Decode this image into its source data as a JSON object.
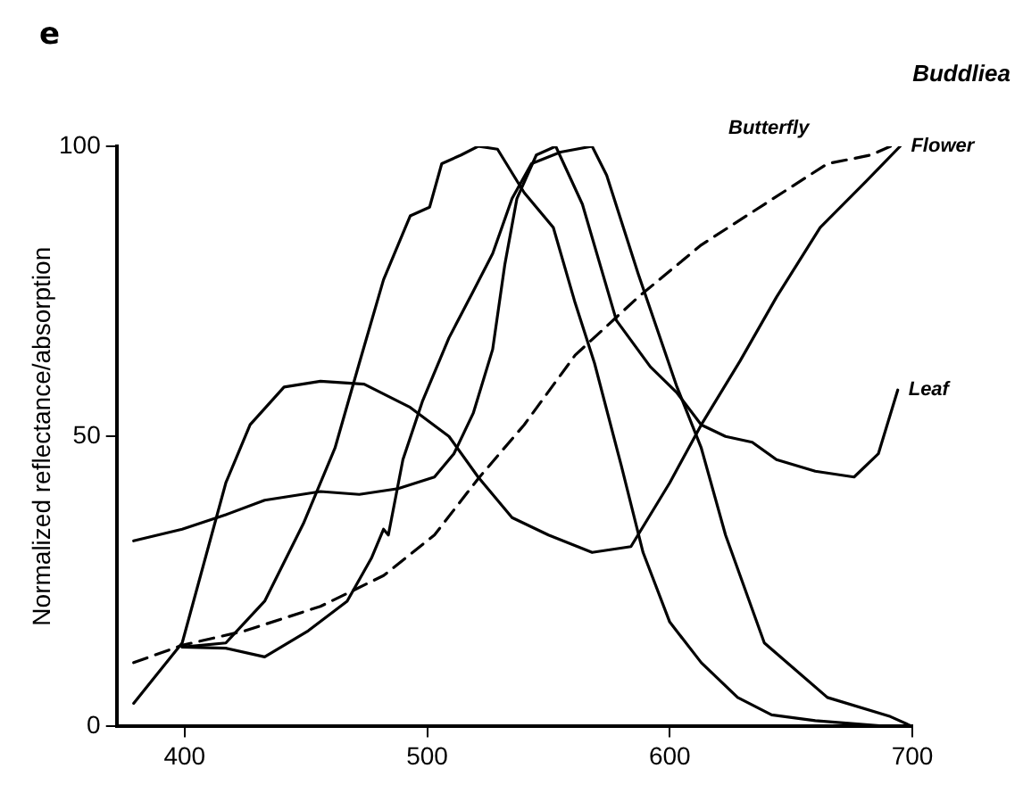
{
  "chart_data": {
    "type": "line",
    "title": "Buddliea",
    "ylabel": "Normalized reflectance/absorption",
    "annotations": [
      "e",
      "Butterfly",
      {
        "text": "Flower",
        "x": 695,
        "y": 100
      },
      {
        "text": "Leaf",
        "x": 694,
        "y": 58
      }
    ],
    "xlim": [
      372,
      700
    ],
    "xticks": [
      400,
      500,
      600,
      700
    ],
    "ylim": [
      0,
      100
    ],
    "yticks": [
      0,
      50,
      100
    ],
    "grid": false,
    "legend": false,
    "marker": "none",
    "series": [
      {
        "color": "#000000",
        "line_style": "solid",
        "x": [
          379,
          399,
          417,
          427,
          441,
          456,
          474,
          493,
          509,
          521,
          535,
          550,
          568,
          584,
          600,
          613,
          629,
          644,
          662,
          681,
          695
        ],
        "values": [
          4,
          14.4,
          42,
          52,
          58.5,
          59.5,
          59,
          55,
          50,
          43,
          36,
          33,
          30,
          31,
          42,
          52,
          63,
          74,
          86,
          94,
          100
        ]
      },
      {
        "color": "#000000",
        "line_style": "dashed",
        "x": [
          379,
          399,
          425,
          456,
          482,
          503,
          521,
          540,
          561,
          587,
          613,
          639,
          665,
          683,
          691
        ],
        "values": [
          11,
          14,
          16.5,
          20.7,
          26,
          33,
          42.7,
          52,
          64,
          74,
          83,
          90,
          97,
          98.5,
          100
        ]
      },
      {
        "color": "#000000",
        "line_style": "solid",
        "x": [
          379,
          399,
          417,
          433,
          456,
          472,
          488,
          503,
          511,
          519,
          527,
          532,
          537,
          545,
          553,
          564,
          578,
          592,
          603,
          613,
          623,
          634,
          644,
          660,
          676,
          686,
          694
        ],
        "values": [
          32,
          34,
          36.5,
          39,
          40.5,
          40,
          41,
          43,
          47,
          54,
          65,
          79.6,
          91,
          98.5,
          100,
          90,
          70,
          62,
          57.5,
          52,
          50,
          49,
          46,
          44,
          43,
          47,
          58
        ]
      },
      {
        "color": "#000000",
        "line_style": "solid",
        "x": [
          399,
          417,
          433,
          449,
          462,
          472,
          482,
          493,
          501,
          506,
          514,
          521,
          529,
          540,
          552,
          561,
          569,
          580,
          589,
          600,
          613,
          628,
          642,
          660,
          690
        ],
        "values": [
          13.7,
          14.4,
          21.6,
          35,
          48,
          62.6,
          77,
          88,
          89.5,
          97,
          98.5,
          100,
          99.5,
          92,
          86,
          73,
          62.6,
          45,
          30,
          18,
          11,
          5,
          2,
          1,
          0
        ]
      },
      {
        "color": "#000000",
        "line_style": "solid",
        "x": [
          399,
          417,
          433,
          451,
          467,
          477,
          482,
          484,
          490,
          498,
          509,
          519,
          527,
          535,
          543,
          555,
          568,
          574,
          587,
          603,
          613,
          623,
          639,
          665,
          691,
          700
        ],
        "values": [
          13.7,
          13.5,
          12,
          16.5,
          21.6,
          29,
          34,
          33,
          46,
          56,
          67,
          75,
          81.5,
          91,
          97,
          99,
          100,
          95,
          78,
          58.5,
          48,
          33,
          14.4,
          5,
          1.7,
          0
        ]
      }
    ]
  }
}
